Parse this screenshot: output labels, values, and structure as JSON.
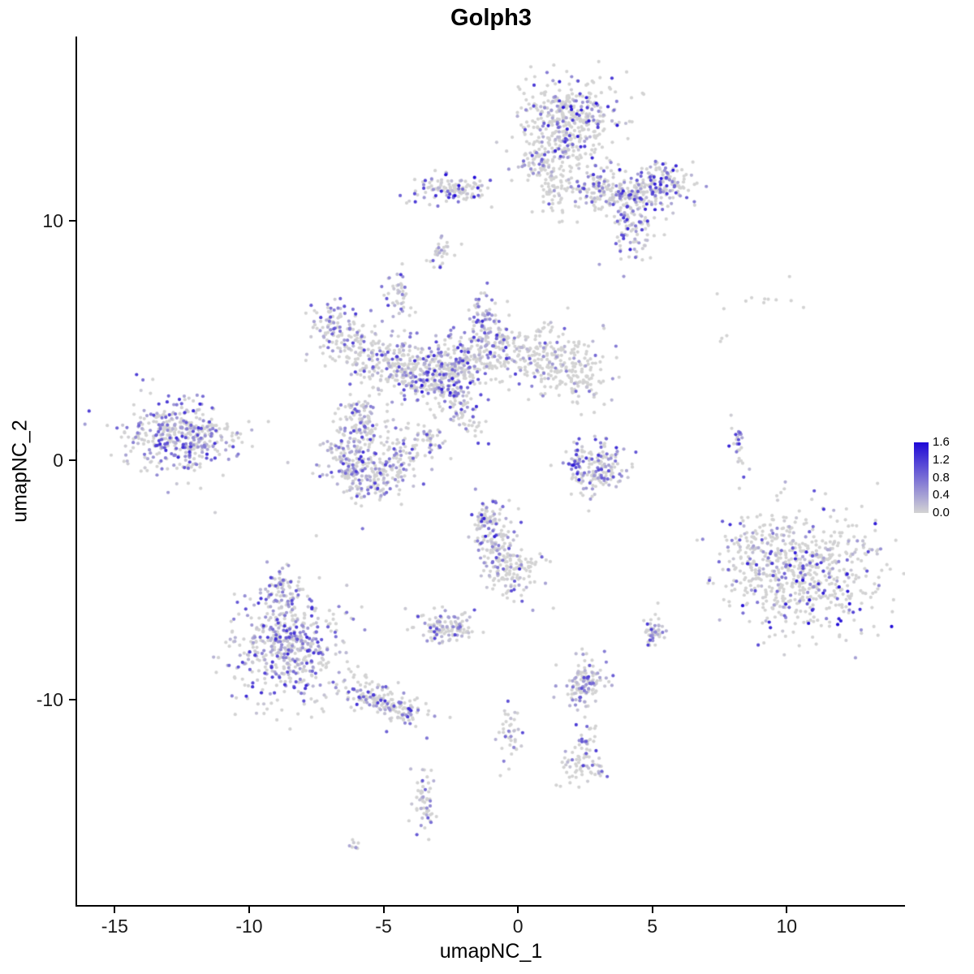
{
  "page": {
    "background": "#ffffff"
  },
  "chart_data": {
    "type": "scatter",
    "title": "Golph3",
    "xlabel": "umapNC_1",
    "ylabel": "umapNC_2",
    "xlim": [
      -16.4,
      14.4
    ],
    "ylim": [
      -18.6,
      17.7
    ],
    "x_ticks": [
      -15,
      -10,
      -5,
      0,
      5,
      10
    ],
    "y_ticks": [
      10,
      0,
      -10
    ],
    "legend_labels": [
      "1.6",
      "1.2",
      "0.8",
      "0.4",
      "0.0"
    ],
    "color_max": 1.6,
    "color_low": "#d3d3d3",
    "color_high": "#1e08d7",
    "point_radius": 2.1,
    "seed": 7,
    "cluster_fields": [
      "center_x",
      "center_y",
      "sd_x",
      "sd_y",
      "rot_deg",
      "n_points",
      "frac_expressing",
      "max_expression"
    ],
    "clusters": [
      [
        1.9,
        14.2,
        0.85,
        0.95,
        0,
        420,
        0.32,
        1.5
      ],
      [
        0.9,
        12.6,
        0.45,
        0.5,
        0,
        90,
        0.3,
        1.2
      ],
      [
        1.5,
        11.2,
        0.45,
        0.6,
        0,
        60,
        0.25,
        1.0
      ],
      [
        4.5,
        11.3,
        1.1,
        0.45,
        8,
        200,
        0.5,
        1.5
      ],
      [
        4.3,
        9.9,
        0.4,
        0.8,
        0,
        120,
        0.5,
        1.4
      ],
      [
        3.1,
        11.3,
        0.5,
        0.5,
        0,
        80,
        0.4,
        1.3
      ],
      [
        5.6,
        11.5,
        0.35,
        0.35,
        0,
        60,
        0.5,
        1.4
      ],
      [
        -2.5,
        11.3,
        0.75,
        0.3,
        0,
        120,
        0.5,
        1.6
      ],
      [
        -2.8,
        8.7,
        0.2,
        0.35,
        0,
        30,
        0.45,
        1.3
      ],
      [
        -4.5,
        6.9,
        0.22,
        0.5,
        0,
        40,
        0.6,
        1.2
      ],
      [
        -7.0,
        5.7,
        0.5,
        0.45,
        0,
        70,
        0.5,
        1.2
      ],
      [
        -6.1,
        4.9,
        0.6,
        0.5,
        30,
        90,
        0.45,
        1.2
      ],
      [
        -5.0,
        4.1,
        0.75,
        0.5,
        35,
        110,
        0.4,
        1.2
      ],
      [
        -1.2,
        5.7,
        0.35,
        0.7,
        0,
        80,
        0.5,
        1.4
      ],
      [
        -2.0,
        4.3,
        0.7,
        0.55,
        0,
        130,
        0.45,
        1.3
      ],
      [
        -0.5,
        4.6,
        0.6,
        0.5,
        0,
        110,
        0.4,
        1.3
      ],
      [
        1.3,
        4.3,
        0.85,
        0.7,
        0,
        190,
        0.28,
        1.2
      ],
      [
        2.4,
        3.4,
        0.45,
        0.6,
        0,
        70,
        0.2,
        1.0
      ],
      [
        -2.9,
        3.3,
        0.75,
        0.6,
        0,
        230,
        0.55,
        1.5
      ],
      [
        -4.1,
        3.8,
        0.5,
        0.45,
        0,
        90,
        0.45,
        1.2
      ],
      [
        -2.0,
        1.9,
        0.6,
        0.28,
        -55,
        60,
        0.5,
        1.4
      ],
      [
        -5.8,
        1.6,
        0.5,
        0.6,
        0,
        110,
        0.5,
        1.2
      ],
      [
        -6.2,
        0.2,
        0.55,
        0.6,
        0,
        140,
        0.55,
        1.3
      ],
      [
        -5.3,
        -0.8,
        0.6,
        0.45,
        0,
        110,
        0.5,
        1.2
      ],
      [
        -4.4,
        0.1,
        0.5,
        0.5,
        0,
        80,
        0.45,
        1.2
      ],
      [
        -3.4,
        0.8,
        0.4,
        0.4,
        0,
        45,
        0.4,
        1.1
      ],
      [
        -12.6,
        1.0,
        1.05,
        0.75,
        0,
        420,
        0.55,
        1.35
      ],
      [
        3.0,
        -0.4,
        0.6,
        0.55,
        0,
        150,
        0.4,
        1.3
      ],
      [
        2.2,
        -0.1,
        0.2,
        0.4,
        0,
        25,
        0.75,
        1.5
      ],
      [
        8.2,
        0.6,
        0.13,
        0.55,
        8,
        26,
        0.7,
        1.4
      ],
      [
        8.9,
        6.8,
        1.0,
        0.25,
        0,
        11,
        0.05,
        0.5
      ],
      [
        7.7,
        4.9,
        0.15,
        0.3,
        0,
        3,
        0.1,
        0.5
      ],
      [
        10.5,
        -4.6,
        1.45,
        1.25,
        0,
        620,
        0.3,
        1.6
      ],
      [
        8.7,
        -3.9,
        0.45,
        0.75,
        0,
        70,
        0.35,
        1.3
      ],
      [
        -8.5,
        -7.8,
        1.05,
        1.15,
        0,
        540,
        0.6,
        1.35
      ],
      [
        -5.3,
        -9.9,
        0.75,
        0.35,
        -18,
        140,
        0.5,
        1.3
      ],
      [
        -4.1,
        -10.6,
        0.35,
        0.3,
        0,
        45,
        0.5,
        1.3
      ],
      [
        -8.8,
        -5.3,
        0.4,
        0.45,
        0,
        55,
        0.55,
        1.2
      ],
      [
        -0.8,
        -3.7,
        0.42,
        0.85,
        10,
        150,
        0.45,
        1.4
      ],
      [
        -0.1,
        -4.6,
        0.45,
        0.4,
        0,
        70,
        0.3,
        1.1
      ],
      [
        -1.1,
        -2.5,
        0.28,
        0.4,
        0,
        40,
        0.5,
        1.3
      ],
      [
        -2.7,
        -7.0,
        0.5,
        0.32,
        0,
        120,
        0.5,
        1.2
      ],
      [
        2.5,
        -9.35,
        0.38,
        0.5,
        0,
        130,
        0.55,
        1.25
      ],
      [
        5.0,
        -7.25,
        0.22,
        0.3,
        0,
        45,
        0.6,
        1.2
      ],
      [
        -0.3,
        -11.5,
        0.22,
        0.6,
        0,
        40,
        0.5,
        1.2
      ],
      [
        2.3,
        -12.4,
        0.32,
        0.62,
        -25,
        65,
        0.4,
        1.2
      ],
      [
        2.9,
        -12.9,
        0.25,
        0.2,
        0,
        18,
        0.3,
        1.0
      ],
      [
        -3.5,
        -14.3,
        0.24,
        0.65,
        0,
        60,
        0.4,
        1.2
      ],
      [
        -6.1,
        -16.1,
        0.16,
        0.13,
        0,
        8,
        0.5,
        1.0
      ],
      [
        1.3,
        -6.0,
        1.2,
        0.55,
        0,
        7,
        0.3,
        1.0
      ]
    ]
  }
}
